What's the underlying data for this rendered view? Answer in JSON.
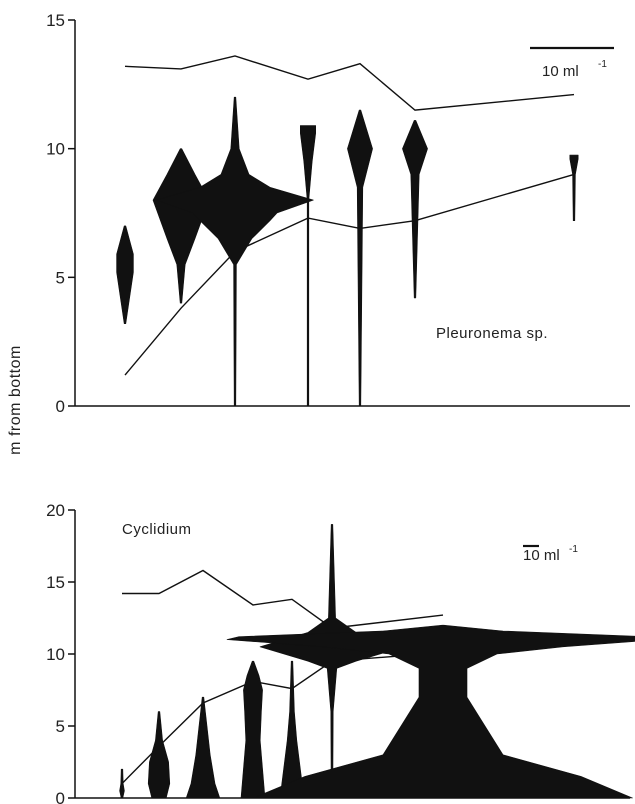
{
  "chart_data": {
    "ylabel": "m from bottom",
    "panels": [
      {
        "type": "kite diagram",
        "label": "Pleuronema sp.",
        "scale_label": "10 ml",
        "scale_exponent": "-1",
        "ylim": [
          0,
          15
        ],
        "yticks": [
          0,
          5,
          10,
          15
        ],
        "upper_line": [
          13.2,
          13.1,
          13.6,
          12.7,
          13.3,
          11.5,
          12.1
        ],
        "lower_line": [
          1.2,
          3.8,
          6.0,
          7.3,
          6.9,
          7.2,
          9.0
        ],
        "stations": [
          {
            "profile": [
              [
                3.2,
                0
              ],
              [
                5.2,
                0.6
              ],
              [
                5.9,
                0.6
              ],
              [
                7.0,
                0
              ]
            ]
          },
          {
            "profile": [
              [
                4.0,
                0
              ],
              [
                5.5,
                0.3
              ],
              [
                6.5,
                1.0
              ],
              [
                8.0,
                2.0
              ],
              [
                9.0,
                1.0
              ],
              [
                10.0,
                0
              ]
            ]
          },
          {
            "profile": [
              [
                0,
                0
              ],
              [
                5.5,
                0.1
              ],
              [
                6.5,
                1.2
              ],
              [
                7.2,
                2.5
              ],
              [
                7.5,
                3.0
              ],
              [
                8.0,
                5.6
              ],
              [
                8.5,
                2.5
              ],
              [
                9.0,
                1.0
              ],
              [
                10.0,
                0.3
              ],
              [
                12.0,
                0
              ]
            ]
          },
          {
            "profile": [
              [
                0,
                0
              ],
              [
                2.6,
                0
              ],
              [
                8.0,
                0.05
              ],
              [
                9.5,
                0.3
              ],
              [
                10.6,
                0.55
              ],
              [
                10.9,
                0.55
              ]
            ]
          },
          {
            "profile": [
              [
                0,
                0
              ],
              [
                8.5,
                0.2
              ],
              [
                10.0,
                0.9
              ],
              [
                11.5,
                0
              ]
            ]
          },
          {
            "profile": [
              [
                4.2,
                0
              ],
              [
                9.0,
                0.3
              ],
              [
                10.0,
                0.9
              ],
              [
                11.1,
                0
              ]
            ]
          },
          {
            "profile": [
              [
                7.2,
                0
              ],
              [
                9.0,
                0.1
              ],
              [
                9.6,
                0.3
              ],
              [
                9.75,
                0.3
              ]
            ]
          }
        ]
      },
      {
        "type": "kite diagram",
        "label": "Cyclidium",
        "scale_label": "10 ml",
        "scale_exponent": "-1",
        "ylim": [
          0,
          20
        ],
        "yticks": [
          0,
          5,
          10,
          15,
          20
        ],
        "upper_line": [
          14.2,
          14.2,
          15.8,
          13.4,
          13.8,
          11.8,
          12.7
        ],
        "lower_line": [
          1.0,
          3.6,
          6.6,
          8.1,
          7.6,
          9.5,
          10.1
        ],
        "stations": [
          {
            "profile": [
              [
                0,
                0
              ],
              [
                0.5,
                0.2
              ],
              [
                1.0,
                0.1
              ],
              [
                2.0,
                0
              ]
            ]
          },
          {
            "profile": [
              [
                0,
                0.6
              ],
              [
                1.0,
                0.9
              ],
              [
                2.5,
                0.8
              ],
              [
                4.0,
                0.3
              ],
              [
                6.0,
                0
              ]
            ]
          },
          {
            "profile": [
              [
                0,
                1.4
              ],
              [
                1.0,
                1.0
              ],
              [
                3.0,
                0.6
              ],
              [
                6.0,
                0.2
              ],
              [
                7.0,
                0
              ]
            ]
          },
          {
            "profile": [
              [
                0,
                1.0
              ],
              [
                2.0,
                0.8
              ],
              [
                4.0,
                0.6
              ],
              [
                6.0,
                0.7
              ],
              [
                7.5,
                0.8
              ],
              [
                8.5,
                0.5
              ],
              [
                9.5,
                0
              ]
            ]
          },
          {
            "profile": [
              [
                0,
                1.0
              ],
              [
                2.0,
                0.7
              ],
              [
                4.0,
                0.4
              ],
              [
                6.0,
                0.2
              ],
              [
                9.5,
                0
              ]
            ]
          },
          {
            "profile": [
              [
                0,
                0.05
              ],
              [
                6.0,
                0.1
              ],
              [
                9.0,
                0.4
              ],
              [
                9.5,
                2.0
              ],
              [
                10.5,
                6.0
              ],
              [
                11.5,
                2.0
              ],
              [
                12.5,
                0.3
              ],
              [
                19.0,
                0
              ]
            ]
          },
          {
            "profile": [
              [
                0,
                15.8
              ],
              [
                1.5,
                11.5
              ],
              [
                3.0,
                5.0
              ],
              [
                7.0,
                2.0
              ],
              [
                9.0,
                2.0
              ],
              [
                10.0,
                4.5
              ],
              [
                10.5,
                10.0
              ],
              [
                11.0,
                18.0
              ],
              [
                11.2,
                17.0
              ],
              [
                11.6,
                5.0
              ],
              [
                12.0,
                0
              ]
            ]
          }
        ]
      }
    ]
  }
}
